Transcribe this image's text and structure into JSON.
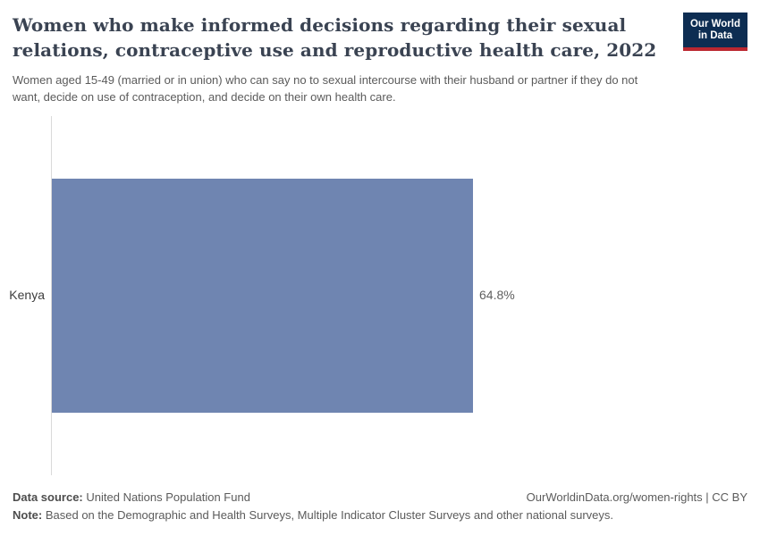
{
  "header": {
    "title_lines": [
      "Women who make informed decisions regarding their sexual",
      "relations, contraceptive use and reproductive health care, 2022"
    ],
    "subtitle_lines": [
      "Women aged 15-49 (married or in union) who can say no to sexual intercourse with their husband or partner if they do not",
      "want, decide on use of contraception, and decide on their own health care."
    ],
    "logo": {
      "line1": "Our World",
      "line2": "in Data"
    }
  },
  "chart_data": {
    "type": "bar",
    "orientation": "horizontal",
    "title": "Women who make informed decisions regarding their sexual relations, contraceptive use and reproductive health care, 2022",
    "categories": [
      "Kenya"
    ],
    "values": [
      64.8
    ],
    "data_labels": [
      "64.8%"
    ],
    "unit": "%",
    "xlim": [
      0,
      100
    ],
    "grid": false,
    "legend": false,
    "bar_color": "#6f85b1"
  },
  "footer": {
    "source_label": "Data source:",
    "source_value": "United Nations Population Fund",
    "credit": "OurWorldinData.org/women-rights | CC BY",
    "note_label": "Note:",
    "note_value": "Based on the Demographic and Health Surveys, Multiple Indicator Cluster Surveys and other national surveys."
  },
  "colors": {
    "bar": "#6f85b1",
    "logo_background": "#0d2d52",
    "logo_accent": "#bb2730",
    "title_text": "#3a4352",
    "muted_text": "#5b5b5b",
    "axis_line": "#d9d9d9"
  }
}
